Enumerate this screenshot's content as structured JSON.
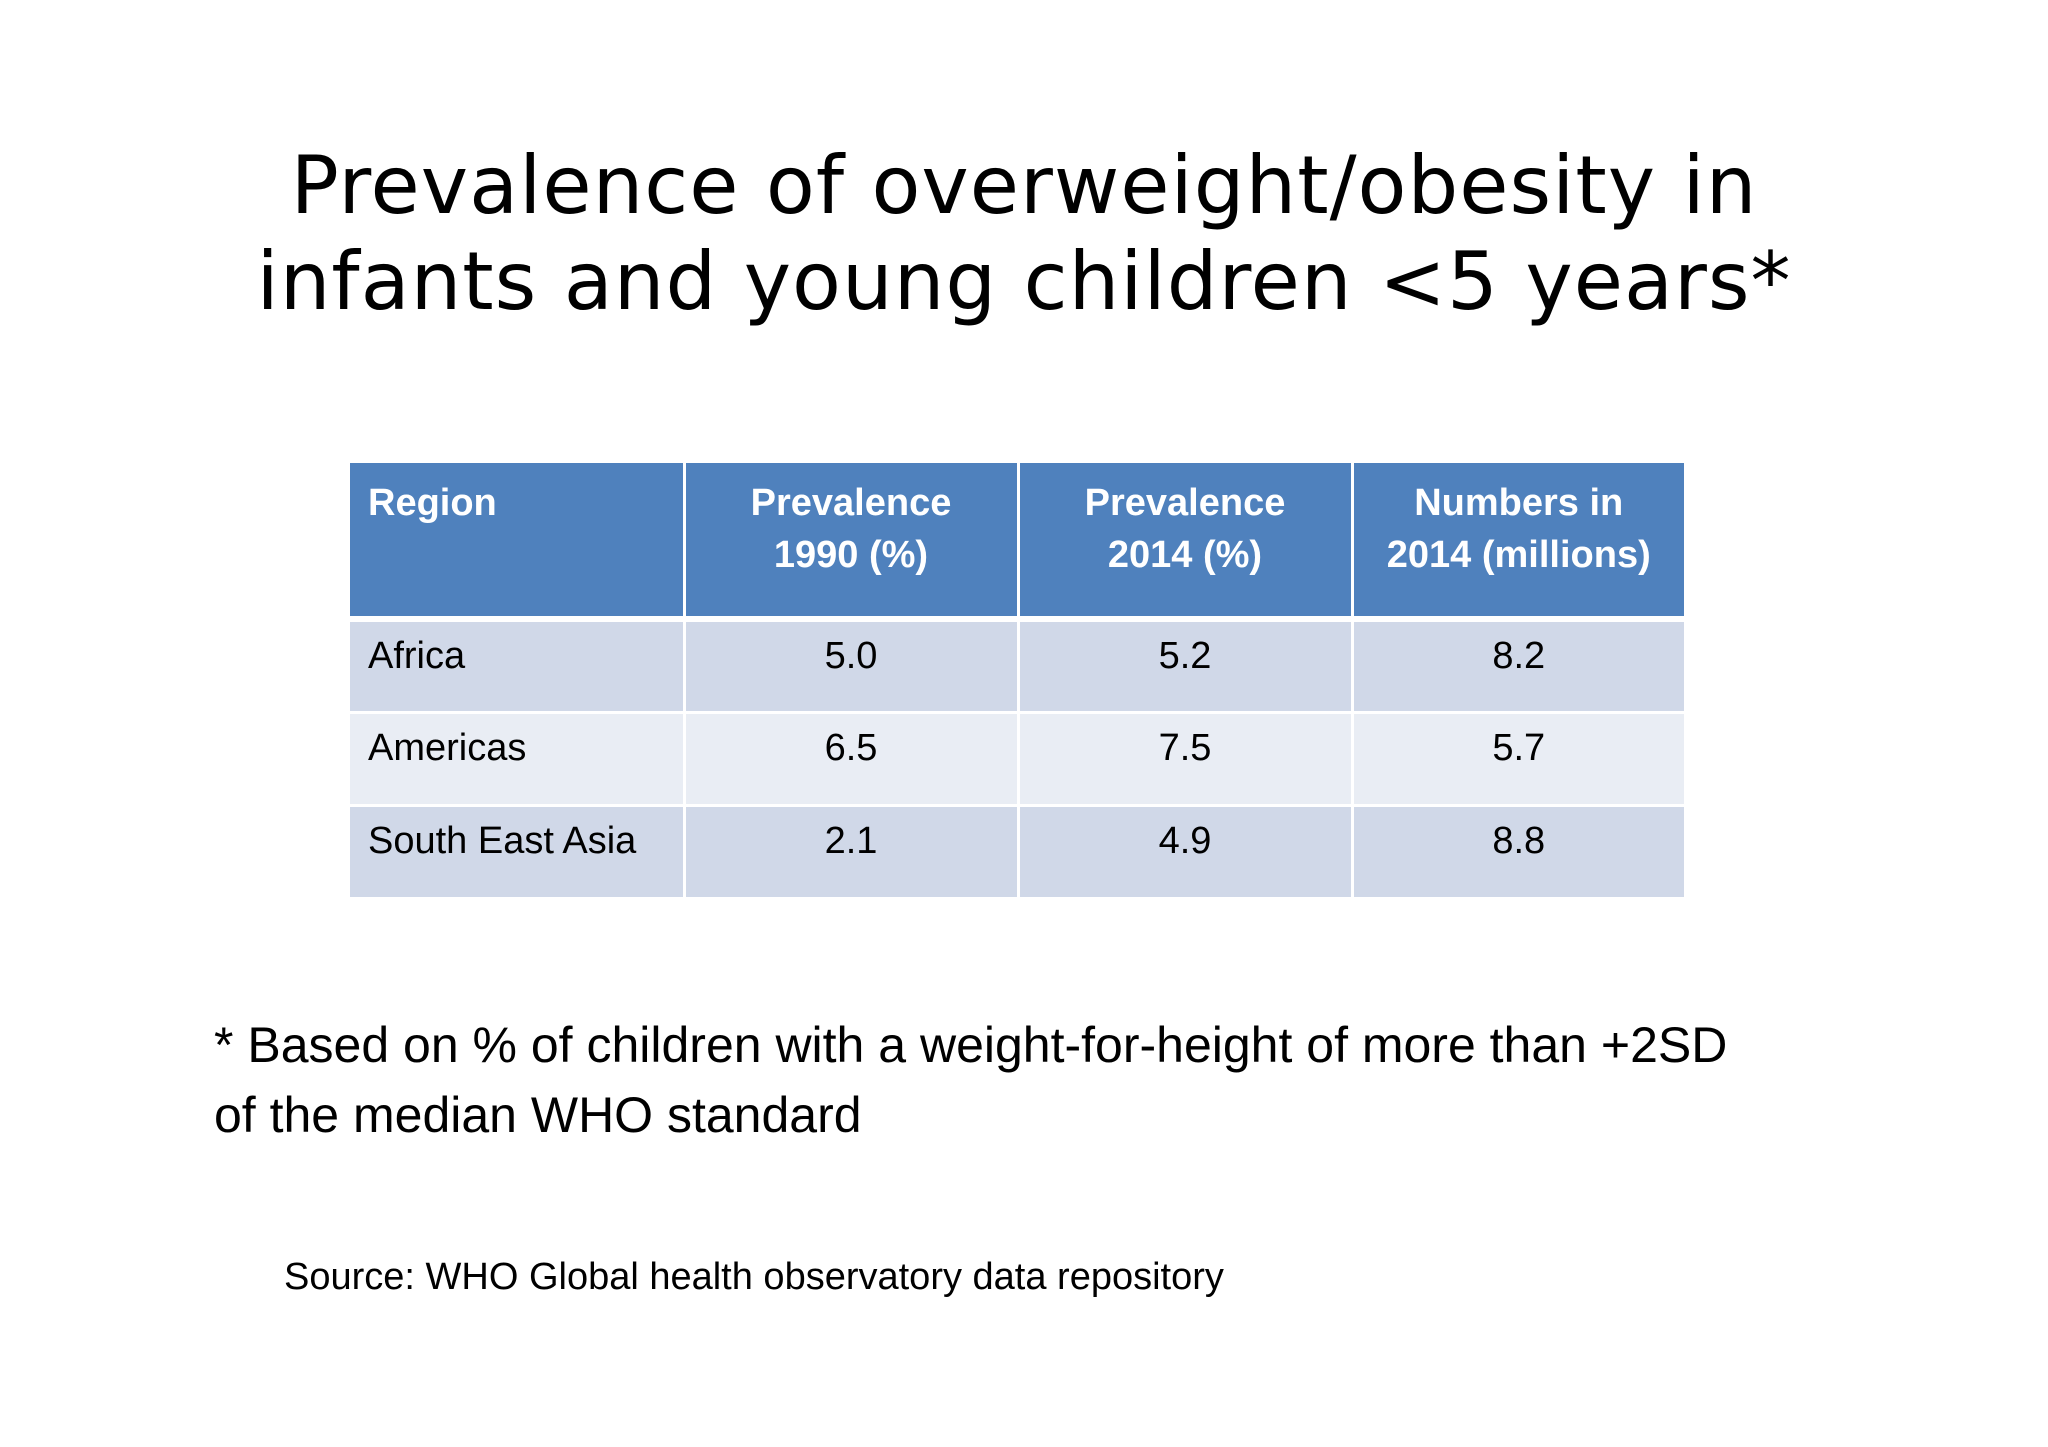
{
  "slide": {
    "title_lines": [
      "Prevalence of overweight/obesity in",
      "infants and young children <5 years*"
    ],
    "table": {
      "headers": [
        [
          "Region"
        ],
        [
          "Prevalence",
          "1990 (%)"
        ],
        [
          "Prevalence",
          "2014 (%)"
        ],
        [
          "Numbers in",
          "2014 (millions)"
        ]
      ],
      "rows": [
        [
          "Africa",
          "5.0",
          "5.2",
          "8.2"
        ],
        [
          "Americas",
          "6.5",
          "7.5",
          "5.7"
        ],
        [
          "South East Asia",
          "2.1",
          "4.9",
          "8.8"
        ]
      ],
      "header_color": "#4f81bd",
      "row_colors": [
        "#d0d8e8",
        "#e9edf4"
      ]
    },
    "footnote_lines": [
      "* Based on % of children with a weight-for-height of more than +2SD",
      "of the median WHO standard"
    ],
    "source": "Source: WHO Global health observatory data repository"
  }
}
